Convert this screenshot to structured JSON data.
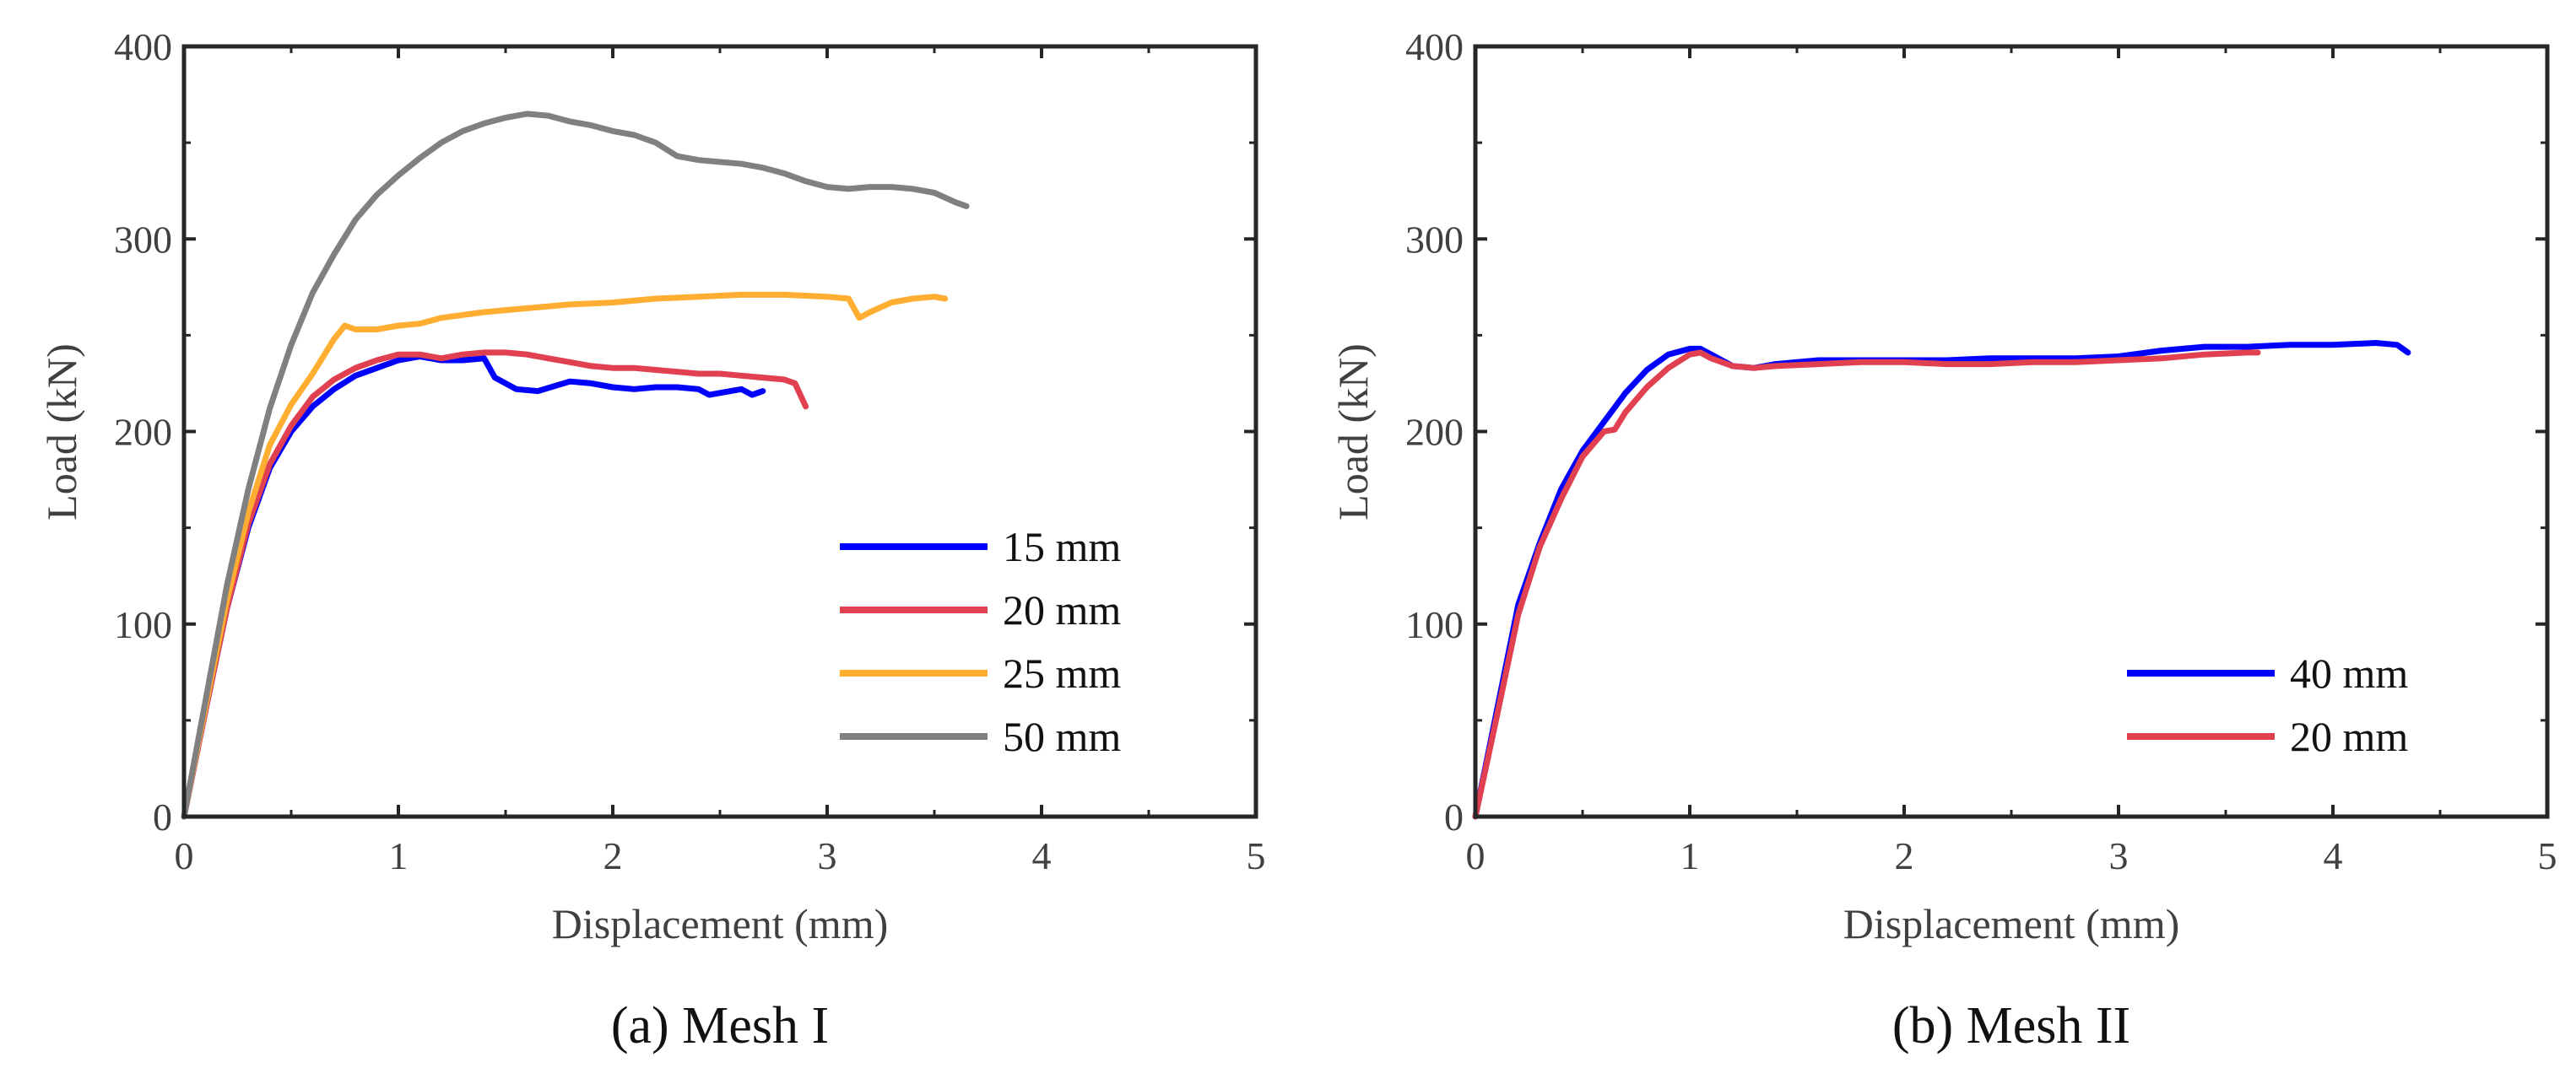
{
  "chart_data": [
    {
      "type": "line",
      "caption": "(a) Mesh I",
      "xlabel": "Displacement (mm)",
      "ylabel": "Load (kN)",
      "xlim": [
        0,
        5
      ],
      "ylim": [
        0,
        400
      ],
      "xticks": [
        "0",
        "1",
        "2",
        "3",
        "4",
        "5"
      ],
      "yticks": [
        "0",
        "100",
        "200",
        "300",
        "400"
      ],
      "legend_position": "bottom-right",
      "series": [
        {
          "name": "15 mm",
          "color": "#0000ff",
          "points": [
            [
              0,
              0
            ],
            [
              0.1,
              55
            ],
            [
              0.2,
              108
            ],
            [
              0.3,
              150
            ],
            [
              0.4,
              181
            ],
            [
              0.5,
              200
            ],
            [
              0.6,
              213
            ],
            [
              0.7,
              222
            ],
            [
              0.8,
              229
            ],
            [
              0.9,
              233
            ],
            [
              1.0,
              237
            ],
            [
              1.1,
              239
            ],
            [
              1.2,
              237
            ],
            [
              1.3,
              237
            ],
            [
              1.4,
              238
            ],
            [
              1.45,
              228
            ],
            [
              1.55,
              222
            ],
            [
              1.65,
              221
            ],
            [
              1.8,
              226
            ],
            [
              1.9,
              225
            ],
            [
              2.0,
              223
            ],
            [
              2.1,
              222
            ],
            [
              2.2,
              223
            ],
            [
              2.3,
              223
            ],
            [
              2.4,
              222
            ],
            [
              2.45,
              219
            ],
            [
              2.55,
              221
            ],
            [
              2.6,
              222
            ],
            [
              2.65,
              219
            ],
            [
              2.7,
              221
            ]
          ]
        },
        {
          "name": "20 mm",
          "color": "#e04050",
          "points": [
            [
              0,
              0
            ],
            [
              0.1,
              55
            ],
            [
              0.2,
              108
            ],
            [
              0.3,
              152
            ],
            [
              0.4,
              183
            ],
            [
              0.5,
              203
            ],
            [
              0.6,
              218
            ],
            [
              0.7,
              227
            ],
            [
              0.8,
              233
            ],
            [
              0.9,
              237
            ],
            [
              1.0,
              240
            ],
            [
              1.1,
              240
            ],
            [
              1.2,
              238
            ],
            [
              1.3,
              240
            ],
            [
              1.4,
              241
            ],
            [
              1.5,
              241
            ],
            [
              1.6,
              240
            ],
            [
              1.7,
              238
            ],
            [
              1.8,
              236
            ],
            [
              1.9,
              234
            ],
            [
              2.0,
              233
            ],
            [
              2.1,
              233
            ],
            [
              2.2,
              232
            ],
            [
              2.3,
              231
            ],
            [
              2.4,
              230
            ],
            [
              2.5,
              230
            ],
            [
              2.6,
              229
            ],
            [
              2.7,
              228
            ],
            [
              2.8,
              227
            ],
            [
              2.85,
              225
            ],
            [
              2.9,
              213
            ]
          ]
        },
        {
          "name": "25 mm",
          "color": "#ffae32",
          "points": [
            [
              0,
              0
            ],
            [
              0.1,
              57
            ],
            [
              0.2,
              112
            ],
            [
              0.3,
              158
            ],
            [
              0.4,
              193
            ],
            [
              0.5,
              214
            ],
            [
              0.6,
              230
            ],
            [
              0.7,
              248
            ],
            [
              0.75,
              255
            ],
            [
              0.8,
              253
            ],
            [
              0.9,
              253
            ],
            [
              1.0,
              255
            ],
            [
              1.1,
              256
            ],
            [
              1.2,
              259
            ],
            [
              1.4,
              262
            ],
            [
              1.6,
              264
            ],
            [
              1.8,
              266
            ],
            [
              2.0,
              267
            ],
            [
              2.2,
              269
            ],
            [
              2.4,
              270
            ],
            [
              2.6,
              271
            ],
            [
              2.8,
              271
            ],
            [
              3.0,
              270
            ],
            [
              3.1,
              269
            ],
            [
              3.15,
              259
            ],
            [
              3.2,
              262
            ],
            [
              3.3,
              267
            ],
            [
              3.4,
              269
            ],
            [
              3.5,
              270
            ],
            [
              3.55,
              269
            ]
          ]
        },
        {
          "name": "50 mm",
          "color": "#808080",
          "points": [
            [
              0,
              0
            ],
            [
              0.1,
              60
            ],
            [
              0.2,
              120
            ],
            [
              0.3,
              170
            ],
            [
              0.4,
              212
            ],
            [
              0.5,
              245
            ],
            [
              0.6,
              272
            ],
            [
              0.7,
              292
            ],
            [
              0.8,
              310
            ],
            [
              0.9,
              323
            ],
            [
              1.0,
              333
            ],
            [
              1.1,
              342
            ],
            [
              1.2,
              350
            ],
            [
              1.3,
              356
            ],
            [
              1.4,
              360
            ],
            [
              1.5,
              363
            ],
            [
              1.6,
              365
            ],
            [
              1.7,
              364
            ],
            [
              1.8,
              361
            ],
            [
              1.9,
              359
            ],
            [
              2.0,
              356
            ],
            [
              2.1,
              354
            ],
            [
              2.2,
              350
            ],
            [
              2.3,
              343
            ],
            [
              2.4,
              341
            ],
            [
              2.5,
              340
            ],
            [
              2.6,
              339
            ],
            [
              2.7,
              337
            ],
            [
              2.8,
              334
            ],
            [
              2.9,
              330
            ],
            [
              3.0,
              327
            ],
            [
              3.1,
              326
            ],
            [
              3.2,
              327
            ],
            [
              3.3,
              327
            ],
            [
              3.4,
              326
            ],
            [
              3.5,
              324
            ],
            [
              3.6,
              319
            ],
            [
              3.65,
              317
            ]
          ]
        }
      ]
    },
    {
      "type": "line",
      "caption": "(b) Mesh II",
      "xlabel": "Displacement (mm)",
      "ylabel": "Load (kN)",
      "xlim": [
        0,
        5
      ],
      "ylim": [
        0,
        400
      ],
      "xticks": [
        "0",
        "1",
        "2",
        "3",
        "4",
        "5"
      ],
      "yticks": [
        "0",
        "100",
        "200",
        "300",
        "400"
      ],
      "legend_position": "bottom-right",
      "series": [
        {
          "name": "40 mm",
          "color": "#0000ff",
          "points": [
            [
              0,
              0
            ],
            [
              0.1,
              55
            ],
            [
              0.2,
              110
            ],
            [
              0.3,
              142
            ],
            [
              0.4,
              170
            ],
            [
              0.5,
              190
            ],
            [
              0.6,
              205
            ],
            [
              0.7,
              220
            ],
            [
              0.8,
              232
            ],
            [
              0.9,
              240
            ],
            [
              1.0,
              243
            ],
            [
              1.05,
              243
            ],
            [
              1.1,
              240
            ],
            [
              1.2,
              234
            ],
            [
              1.3,
              233
            ],
            [
              1.4,
              235
            ],
            [
              1.6,
              237
            ],
            [
              1.8,
              237
            ],
            [
              2.0,
              237
            ],
            [
              2.2,
              237
            ],
            [
              2.4,
              238
            ],
            [
              2.6,
              238
            ],
            [
              2.8,
              238
            ],
            [
              3.0,
              239
            ],
            [
              3.2,
              242
            ],
            [
              3.4,
              244
            ],
            [
              3.6,
              244
            ],
            [
              3.8,
              245
            ],
            [
              4.0,
              245
            ],
            [
              4.2,
              246
            ],
            [
              4.3,
              245
            ],
            [
              4.35,
              241
            ]
          ]
        },
        {
          "name": "20 mm",
          "color": "#e04050",
          "points": [
            [
              0,
              0
            ],
            [
              0.1,
              52
            ],
            [
              0.2,
              105
            ],
            [
              0.3,
              140
            ],
            [
              0.4,
              165
            ],
            [
              0.5,
              187
            ],
            [
              0.6,
              200
            ],
            [
              0.65,
              201
            ],
            [
              0.7,
              210
            ],
            [
              0.8,
              223
            ],
            [
              0.9,
              233
            ],
            [
              1.0,
              240
            ],
            [
              1.05,
              241
            ],
            [
              1.1,
              238
            ],
            [
              1.2,
              234
            ],
            [
              1.3,
              233
            ],
            [
              1.4,
              234
            ],
            [
              1.6,
              235
            ],
            [
              1.8,
              236
            ],
            [
              2.0,
              236
            ],
            [
              2.2,
              235
            ],
            [
              2.4,
              235
            ],
            [
              2.6,
              236
            ],
            [
              2.8,
              236
            ],
            [
              3.0,
              237
            ],
            [
              3.2,
              238
            ],
            [
              3.4,
              240
            ],
            [
              3.6,
              241
            ],
            [
              3.65,
              241
            ]
          ]
        }
      ]
    }
  ]
}
